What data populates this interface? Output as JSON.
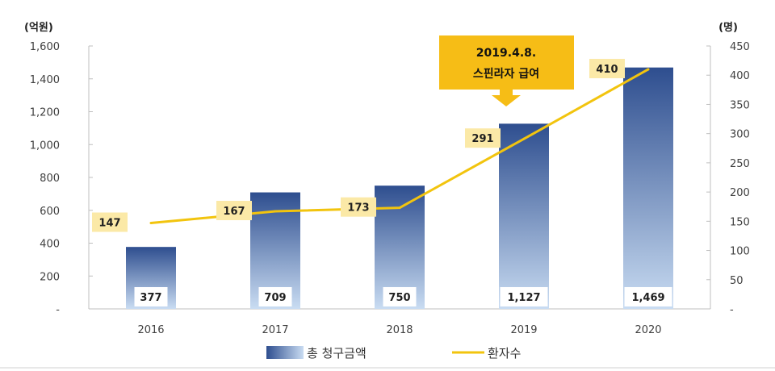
{
  "chart_data": {
    "type": "bar",
    "categories": [
      "2016",
      "2017",
      "2018",
      "2019",
      "2020"
    ],
    "series": [
      {
        "name": "총 청구금액",
        "type": "bar",
        "axis": "left",
        "values": [
          377,
          709,
          750,
          1127,
          1469
        ],
        "labels": [
          "377",
          "709",
          "750",
          "1,127",
          "1,469"
        ]
      },
      {
        "name": "환자수",
        "type": "line",
        "axis": "right",
        "values": [
          147,
          167,
          173,
          291,
          410
        ],
        "labels": [
          "147",
          "167",
          "173",
          "291",
          "410"
        ]
      }
    ],
    "y_left": {
      "unit_label": "(억원)",
      "range": [
        0,
        1600
      ],
      "ticks": [
        "-",
        "200",
        "400",
        "600",
        "800",
        "1,000",
        "1,200",
        "1,400",
        "1,600"
      ]
    },
    "y_right": {
      "unit_label": "(명)",
      "range": [
        0,
        450
      ],
      "ticks": [
        "-",
        "50",
        "100",
        "150",
        "200",
        "250",
        "300",
        "350",
        "400",
        "450"
      ]
    },
    "annotation": {
      "lines": [
        "2019.4.8.",
        "스핀라자 급여"
      ],
      "category": "2019"
    },
    "legend": {
      "position": "bottom"
    },
    "colors": {
      "bar_top": "#2e4e8f",
      "bar_bottom": "#c9dcf2",
      "line": "#f2c40e",
      "label_box": "#fbe9a7",
      "annotation_box": "#f6bd16",
      "axis": "#bfbfbf"
    }
  }
}
